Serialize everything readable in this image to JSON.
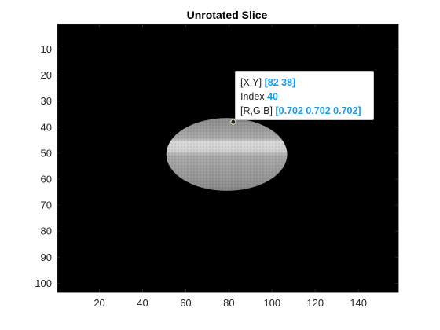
{
  "window": {
    "title": "Unrotated Slice"
  },
  "axes": {
    "x_ticks": [
      "20",
      "40",
      "60",
      "80",
      "100",
      "120",
      "140"
    ],
    "x_tick_values": [
      20,
      40,
      60,
      80,
      100,
      120,
      140
    ],
    "y_ticks": [
      "10",
      "20",
      "30",
      "40",
      "50",
      "60",
      "70",
      "80",
      "90",
      "100"
    ],
    "y_tick_values": [
      10,
      20,
      30,
      40,
      50,
      60,
      70,
      80,
      90,
      100
    ],
    "x_range": [
      0.5,
      158.5
    ],
    "y_range": [
      0.5,
      103.5
    ],
    "y_direction": "reverse",
    "background_color": "#000000"
  },
  "image": {
    "colormap": "gray",
    "shape": "ellipse",
    "center_x": 79,
    "center_y": 50.5,
    "radius_x": 28,
    "radius_y": 14,
    "highlight_band_y": [
      46,
      51
    ]
  },
  "datatip": {
    "xy_label": "[X,Y]",
    "xy_value": "[82 38]",
    "index_label": "Index",
    "index_value": "40",
    "rgb_label": "[R,G,B]",
    "rgb_value": "[0.702 0.702 0.702]",
    "point_x": 82,
    "point_y": 38,
    "value_color": "#1a9be6"
  }
}
